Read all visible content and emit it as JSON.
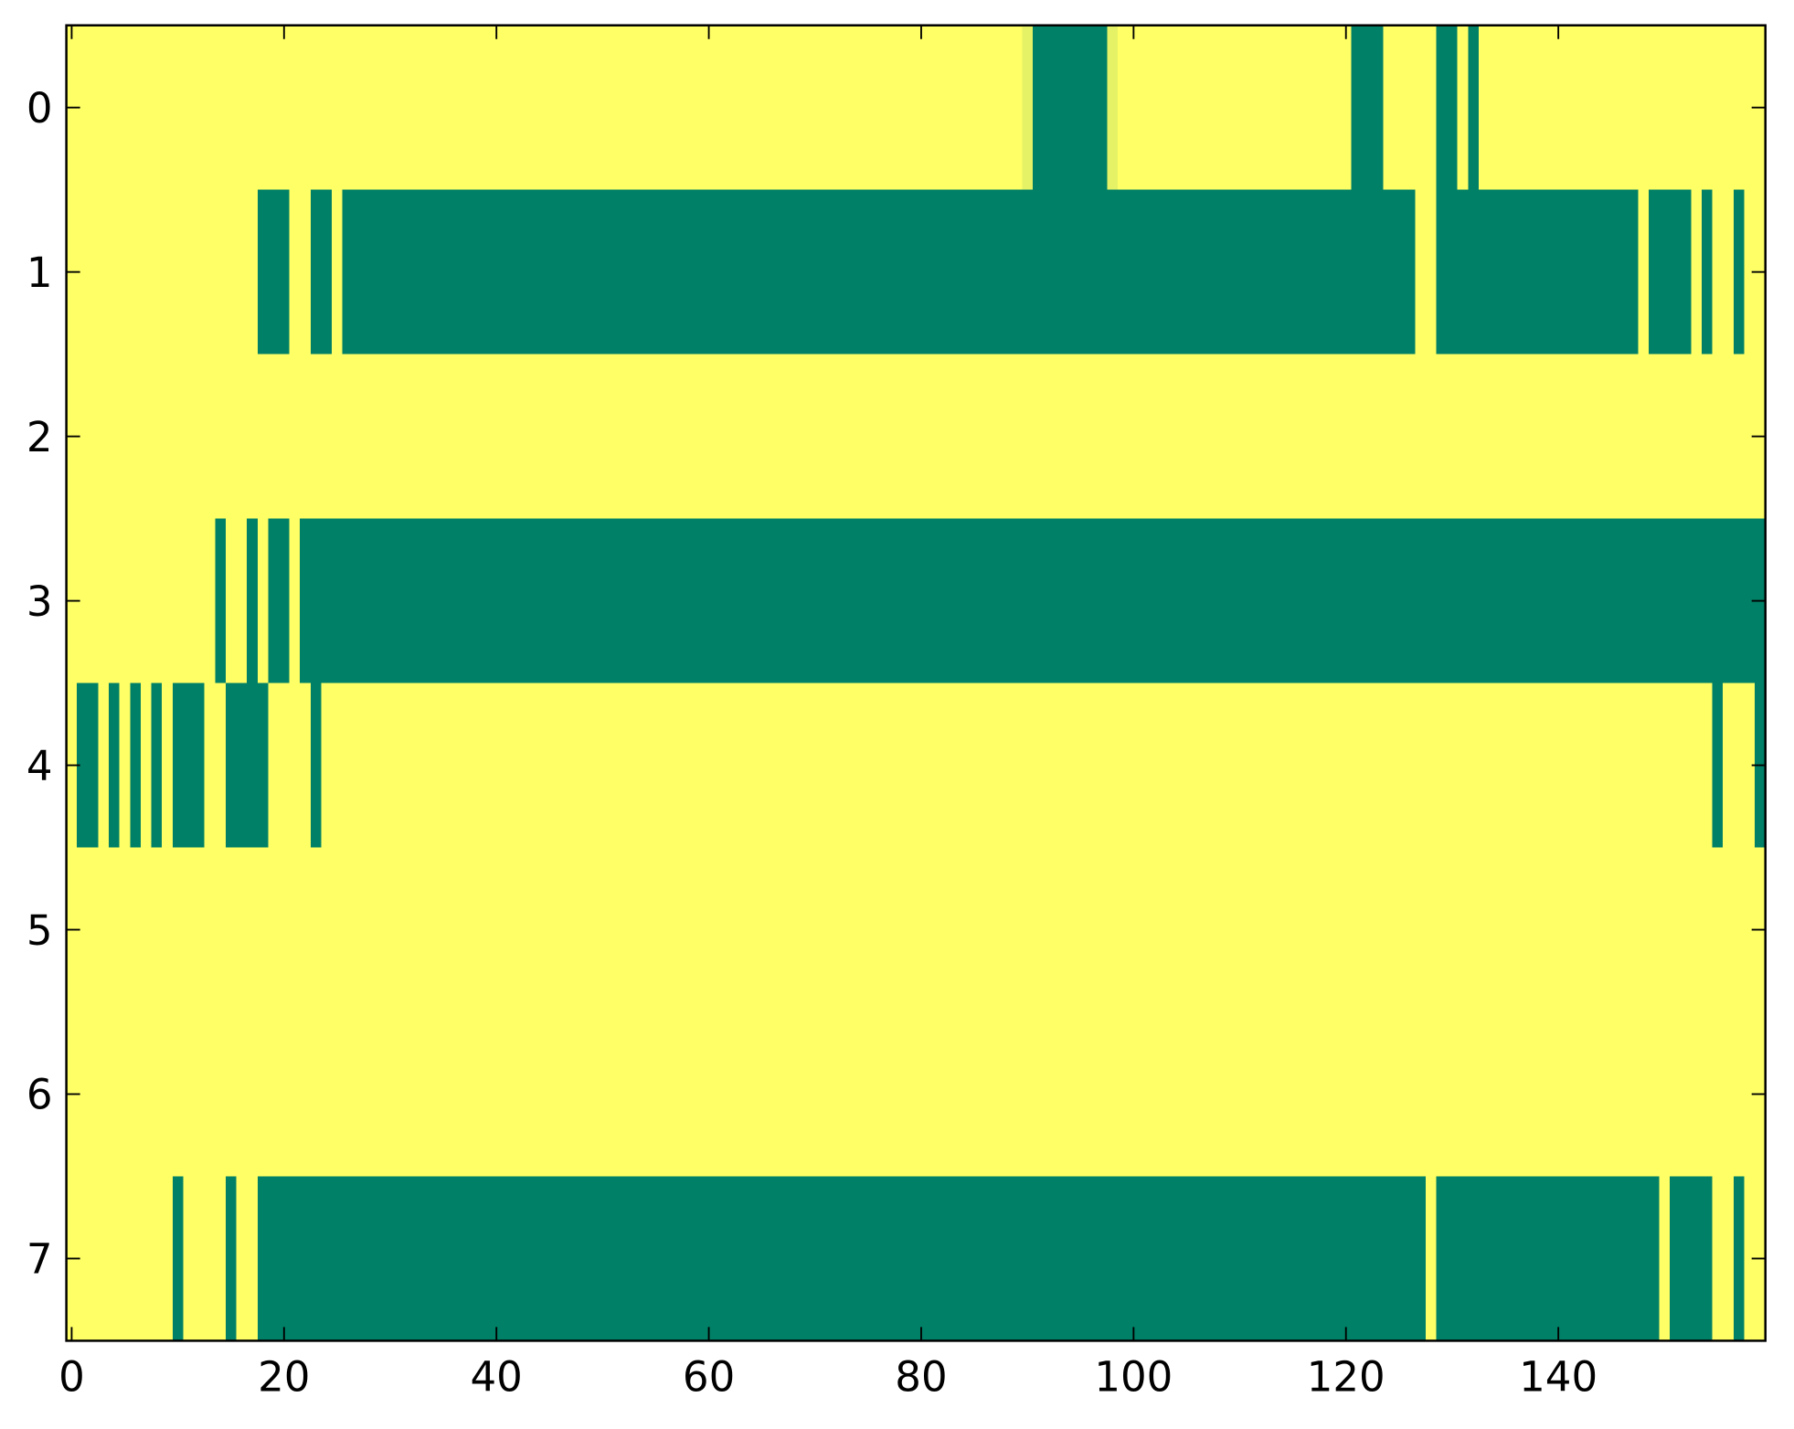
{
  "chart_data": {
    "type": "heatmap",
    "z": [
      [
        1,
        1,
        1,
        1,
        1,
        1,
        1,
        1,
        1,
        1,
        1,
        1,
        1,
        1,
        1,
        1,
        1,
        1,
        1,
        1,
        1,
        1,
        1,
        1,
        1,
        1,
        1,
        1,
        1,
        1,
        1,
        1,
        1,
        1,
        1,
        1,
        1,
        1,
        1,
        1,
        1,
        1,
        1,
        1,
        1,
        1,
        1,
        1,
        1,
        1,
        1,
        1,
        1,
        1,
        1,
        1,
        1,
        1,
        1,
        1,
        1,
        1,
        1,
        1,
        1,
        1,
        1,
        1,
        1,
        1,
        1,
        1,
        1,
        1,
        1,
        1,
        1,
        1,
        1,
        1,
        1,
        1,
        1,
        1,
        1,
        1,
        1,
        1,
        1,
        1,
        0.9,
        0,
        0,
        0,
        0,
        0,
        0,
        0,
        0.9,
        1,
        1,
        1,
        1,
        1,
        1,
        1,
        1,
        1,
        1,
        1,
        1,
        1,
        1,
        1,
        1,
        1,
        1,
        1,
        1,
        1,
        1,
        0,
        0,
        0,
        1,
        1,
        1,
        1,
        1,
        0,
        0,
        1,
        0,
        1,
        1,
        1,
        1,
        1,
        1,
        1,
        1,
        1,
        1,
        1,
        1,
        1,
        1,
        1,
        1,
        1,
        1,
        1,
        1,
        1,
        1,
        1,
        1,
        1,
        1,
        1
      ],
      [
        1,
        1,
        1,
        1,
        1,
        1,
        1,
        1,
        1,
        1,
        1,
        1,
        1,
        1,
        1,
        1,
        1,
        1,
        0,
        0,
        0,
        1,
        1,
        0,
        0,
        1,
        0,
        0,
        0,
        0,
        0,
        0,
        0,
        0,
        0,
        0,
        0,
        0,
        0,
        0,
        0,
        0,
        0,
        0,
        0,
        0,
        0,
        0,
        0,
        0,
        0,
        0,
        0,
        0,
        0,
        0,
        0,
        0,
        0,
        0,
        0,
        0,
        0,
        0,
        0,
        0,
        0,
        0,
        0,
        0,
        0,
        0,
        0,
        0,
        0,
        0,
        0,
        0,
        0,
        0,
        0,
        0,
        0,
        0,
        0,
        0,
        0,
        0,
        0,
        0,
        0,
        0,
        0,
        0,
        0,
        0,
        0,
        0,
        0,
        0,
        0,
        0,
        0,
        0,
        0,
        0,
        0,
        0,
        0,
        0,
        0,
        0,
        0,
        0,
        0,
        0,
        0,
        0,
        0,
        0,
        0,
        0,
        0,
        0,
        0,
        0,
        0,
        1,
        1,
        0,
        0,
        0,
        0,
        0,
        0,
        0,
        0,
        0,
        0,
        0,
        0,
        0,
        0,
        0,
        0,
        0,
        0,
        0,
        1,
        0,
        0,
        0,
        0,
        1,
        0,
        1,
        1,
        0,
        1,
        1
      ],
      [
        1,
        1,
        1,
        1,
        1,
        1,
        1,
        1,
        1,
        1,
        1,
        1,
        1,
        1,
        1,
        1,
        1,
        1,
        1,
        1,
        1,
        1,
        1,
        1,
        1,
        1,
        1,
        1,
        1,
        1,
        1,
        1,
        1,
        1,
        1,
        1,
        1,
        1,
        1,
        1,
        1,
        1,
        1,
        1,
        1,
        1,
        1,
        1,
        1,
        1,
        1,
        1,
        1,
        1,
        1,
        1,
        1,
        1,
        1,
        1,
        1,
        1,
        1,
        1,
        1,
        1,
        1,
        1,
        1,
        1,
        1,
        1,
        1,
        1,
        1,
        1,
        1,
        1,
        1,
        1,
        1,
        1,
        1,
        1,
        1,
        1,
        1,
        1,
        1,
        1,
        1,
        1,
        1,
        1,
        1,
        1,
        1,
        1,
        1,
        1,
        1,
        1,
        1,
        1,
        1,
        1,
        1,
        1,
        1,
        1,
        1,
        1,
        1,
        1,
        1,
        1,
        1,
        1,
        1,
        1,
        1,
        1,
        1,
        1,
        1,
        1,
        1,
        1,
        1,
        1,
        1,
        1,
        1,
        1,
        1,
        1,
        1,
        1,
        1,
        1,
        1,
        1,
        1,
        1,
        1,
        1,
        1,
        1,
        1,
        1,
        1,
        1,
        1,
        1,
        1,
        1,
        1,
        1,
        1,
        1
      ],
      [
        1,
        1,
        1,
        1,
        1,
        1,
        1,
        1,
        1,
        1,
        1,
        1,
        1,
        1,
        0,
        1,
        1,
        0,
        1,
        0,
        0,
        1,
        0,
        0,
        0,
        0,
        0,
        0,
        0,
        0,
        0,
        0,
        0,
        0,
        0,
        0,
        0,
        0,
        0,
        0,
        0,
        0,
        0,
        0,
        0,
        0,
        0,
        0,
        0,
        0,
        0,
        0,
        0,
        0,
        0,
        0,
        0,
        0,
        0,
        0,
        0,
        0,
        0,
        0,
        0,
        0,
        0,
        0,
        0,
        0,
        0,
        0,
        0,
        0,
        0,
        0,
        0,
        0,
        0,
        0,
        0,
        0,
        0,
        0,
        0,
        0,
        0,
        0,
        0,
        0,
        0,
        0,
        0,
        0,
        0,
        0,
        0,
        0,
        0,
        0,
        0,
        0,
        0,
        0,
        0,
        0,
        0,
        0,
        0,
        0,
        0,
        0,
        0,
        0,
        0,
        0,
        0,
        0,
        0,
        0,
        0,
        0,
        0,
        0,
        0,
        0,
        0,
        0,
        0,
        0,
        0,
        0,
        0,
        0,
        0,
        0,
        0,
        0,
        0,
        0,
        0,
        0,
        0,
        0,
        0,
        0,
        0,
        0,
        0,
        0,
        0,
        0,
        0,
        0,
        0,
        0,
        0,
        0,
        0,
        0
      ],
      [
        1,
        0,
        0,
        1,
        0,
        1,
        0,
        1,
        0,
        1,
        0,
        0,
        0,
        1,
        1,
        0,
        0,
        0,
        0,
        1,
        1,
        1,
        1,
        0,
        1,
        1,
        1,
        1,
        1,
        1,
        1,
        1,
        1,
        1,
        1,
        1,
        1,
        1,
        1,
        1,
        1,
        1,
        1,
        1,
        1,
        1,
        1,
        1,
        1,
        1,
        1,
        1,
        1,
        1,
        1,
        1,
        1,
        1,
        1,
        1,
        1,
        1,
        1,
        1,
        1,
        1,
        1,
        1,
        1,
        1,
        1,
        1,
        1,
        1,
        1,
        1,
        1,
        1,
        1,
        1,
        1,
        1,
        1,
        1,
        1,
        1,
        1,
        1,
        1,
        1,
        1,
        1,
        1,
        1,
        1,
        1,
        1,
        1,
        1,
        1,
        1,
        1,
        1,
        1,
        1,
        1,
        1,
        1,
        1,
        1,
        1,
        1,
        1,
        1,
        1,
        1,
        1,
        1,
        1,
        1,
        1,
        1,
        1,
        1,
        1,
        1,
        1,
        1,
        1,
        1,
        1,
        1,
        1,
        1,
        1,
        1,
        1,
        1,
        1,
        1,
        1,
        1,
        1,
        1,
        1,
        1,
        1,
        1,
        1,
        1,
        1,
        1,
        1,
        1,
        1,
        0,
        1,
        1,
        1,
        0
      ],
      [
        1,
        1,
        1,
        1,
        1,
        1,
        1,
        1,
        1,
        1,
        1,
        1,
        1,
        1,
        1,
        1,
        1,
        1,
        1,
        1,
        1,
        1,
        1,
        1,
        1,
        1,
        1,
        1,
        1,
        1,
        1,
        1,
        1,
        1,
        1,
        1,
        1,
        1,
        1,
        1,
        1,
        1,
        1,
        1,
        1,
        1,
        1,
        1,
        1,
        1,
        1,
        1,
        1,
        1,
        1,
        1,
        1,
        1,
        1,
        1,
        1,
        1,
        1,
        1,
        1,
        1,
        1,
        1,
        1,
        1,
        1,
        1,
        1,
        1,
        1,
        1,
        1,
        1,
        1,
        1,
        1,
        1,
        1,
        1,
        1,
        1,
        1,
        1,
        1,
        1,
        1,
        1,
        1,
        1,
        1,
        1,
        1,
        1,
        1,
        1,
        1,
        1,
        1,
        1,
        1,
        1,
        1,
        1,
        1,
        1,
        1,
        1,
        1,
        1,
        1,
        1,
        1,
        1,
        1,
        1,
        1,
        1,
        1,
        1,
        1,
        1,
        1,
        1,
        1,
        1,
        1,
        1,
        1,
        1,
        1,
        1,
        1,
        1,
        1,
        1,
        1,
        1,
        1,
        1,
        1,
        1,
        1,
        1,
        1,
        1,
        1,
        1,
        1,
        1,
        1,
        1,
        1,
        1,
        1,
        1
      ],
      [
        1,
        1,
        1,
        1,
        1,
        1,
        1,
        1,
        1,
        1,
        1,
        1,
        1,
        1,
        1,
        1,
        1,
        1,
        1,
        1,
        1,
        1,
        1,
        1,
        1,
        1,
        1,
        1,
        1,
        1,
        1,
        1,
        1,
        1,
        1,
        1,
        1,
        1,
        1,
        1,
        1,
        1,
        1,
        1,
        1,
        1,
        1,
        1,
        1,
        1,
        1,
        1,
        1,
        1,
        1,
        1,
        1,
        1,
        1,
        1,
        1,
        1,
        1,
        1,
        1,
        1,
        1,
        1,
        1,
        1,
        1,
        1,
        1,
        1,
        1,
        1,
        1,
        1,
        1,
        1,
        1,
        1,
        1,
        1,
        1,
        1,
        1,
        1,
        1,
        1,
        1,
        1,
        1,
        1,
        1,
        1,
        1,
        1,
        1,
        1,
        1,
        1,
        1,
        1,
        1,
        1,
        1,
        1,
        1,
        1,
        1,
        1,
        1,
        1,
        1,
        1,
        1,
        1,
        1,
        1,
        1,
        1,
        1,
        1,
        1,
        1,
        1,
        1,
        1,
        1,
        1,
        1,
        1,
        1,
        1,
        1,
        1,
        1,
        1,
        1,
        1,
        1,
        1,
        1,
        1,
        1,
        1,
        1,
        1,
        1,
        1,
        1,
        1,
        1,
        1,
        1,
        1,
        1,
        1,
        1
      ],
      [
        1,
        1,
        1,
        1,
        1,
        1,
        1,
        1,
        1,
        1,
        0,
        1,
        1,
        1,
        1,
        0,
        1,
        1,
        0,
        0,
        0,
        0,
        0,
        0,
        0,
        0,
        0,
        0,
        0,
        0,
        0,
        0,
        0,
        0,
        0,
        0,
        0,
        0,
        0,
        0,
        0,
        0,
        0,
        0,
        0,
        0,
        0,
        0,
        0,
        0,
        0,
        0,
        0,
        0,
        0,
        0,
        0,
        0,
        0,
        0,
        0,
        0,
        0,
        0,
        0,
        0,
        0,
        0,
        0,
        0,
        0,
        0,
        0,
        0,
        0,
        0,
        0,
        0,
        0,
        0,
        0,
        0,
        0,
        0,
        0,
        0,
        0,
        0,
        0,
        0,
        0,
        0,
        0,
        0,
        0,
        0,
        0,
        0,
        0,
        0,
        0,
        0,
        0,
        0,
        0,
        0,
        0,
        0,
        0,
        0,
        0,
        0,
        0,
        0,
        0,
        0,
        0,
        0,
        0,
        0,
        0,
        0,
        0,
        0,
        0,
        0,
        0,
        0,
        1,
        0,
        0,
        0,
        0,
        0,
        0,
        0,
        0,
        0,
        0,
        0,
        0,
        0,
        0,
        0,
        0,
        0,
        0,
        0,
        0,
        0,
        1,
        0,
        0,
        0,
        0,
        1,
        1,
        0,
        1,
        1
      ]
    ],
    "cmap": [
      "#008066",
      "#ffff66"
    ],
    "clim": [
      0,
      1
    ],
    "xlim": [
      -0.5,
      159.5
    ],
    "ylim": [
      7.5,
      -0.5
    ],
    "xticks": [
      0,
      20,
      40,
      60,
      80,
      100,
      120,
      140
    ],
    "yticks": [
      0,
      1,
      2,
      3,
      4,
      5,
      6,
      7
    ]
  }
}
